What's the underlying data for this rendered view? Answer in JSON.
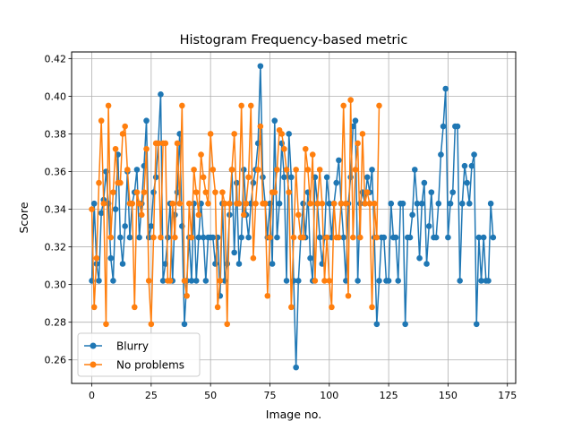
{
  "chart_data": {
    "type": "line",
    "title": "Histogram Frequency-based metric",
    "xlabel": "Image no.",
    "ylabel": "Score",
    "xlim": [
      -8.5,
      178.5
    ],
    "ylim": [
      0.2475,
      0.4235
    ],
    "xticks": [
      0,
      25,
      50,
      75,
      100,
      125,
      150,
      175
    ],
    "yticks": [
      0.26,
      0.28,
      0.3,
      0.32,
      0.34,
      0.36,
      0.38,
      0.4,
      0.42
    ],
    "ytick_labels": [
      "0.26",
      "0.28",
      "0.30",
      "0.32",
      "0.34",
      "0.36",
      "0.38",
      "0.40",
      "0.42"
    ],
    "grid": true,
    "legend": "lower-left",
    "series": [
      {
        "name": "Blurry",
        "color": "#1f77b4",
        "values": [
          0.302,
          0.343,
          0.311,
          0.302,
          0.338,
          0.345,
          0.36,
          0.343,
          0.314,
          0.302,
          0.34,
          0.369,
          0.325,
          0.311,
          0.331,
          0.36,
          0.325,
          0.343,
          0.349,
          0.361,
          0.325,
          0.343,
          0.363,
          0.387,
          0.325,
          0.331,
          0.349,
          0.357,
          0.375,
          0.401,
          0.302,
          0.311,
          0.325,
          0.343,
          0.302,
          0.337,
          0.349,
          0.38,
          0.331,
          0.279,
          0.302,
          0.325,
          0.302,
          0.343,
          0.302,
          0.325,
          0.343,
          0.325,
          0.302,
          0.325,
          0.325,
          0.325,
          0.311,
          0.325,
          0.294,
          0.343,
          0.302,
          0.311,
          0.337,
          0.361,
          0.317,
          0.354,
          0.311,
          0.325,
          0.361,
          0.337,
          0.325,
          0.343,
          0.354,
          0.361,
          0.375,
          0.416,
          0.357,
          0.343,
          0.325,
          0.343,
          0.311,
          0.387,
          0.325,
          0.343,
          0.375,
          0.357,
          0.302,
          0.38,
          0.357,
          0.302,
          0.256,
          0.302,
          0.325,
          0.343,
          0.325,
          0.349,
          0.314,
          0.302,
          0.357,
          0.343,
          0.325,
          0.311,
          0.325,
          0.357,
          0.343,
          0.325,
          0.343,
          0.354,
          0.366,
          0.343,
          0.325,
          0.302,
          0.343,
          0.357,
          0.384,
          0.387,
          0.302,
          0.343,
          0.349,
          0.343,
          0.357,
          0.349,
          0.361,
          0.325,
          0.279,
          0.302,
          0.325,
          0.325,
          0.302,
          0.302,
          0.343,
          0.325,
          0.325,
          0.302,
          0.343,
          0.343,
          0.279,
          0.325,
          0.325,
          0.337,
          0.361,
          0.343,
          0.314,
          0.343,
          0.354,
          0.311,
          0.331,
          0.349,
          0.325,
          0.325,
          0.343,
          0.369,
          0.384,
          0.404,
          0.325,
          0.343,
          0.349,
          0.384,
          0.384,
          0.302,
          0.343,
          0.363,
          0.354,
          0.343,
          0.363,
          0.369,
          0.279,
          0.325,
          0.302,
          0.325,
          0.302,
          0.302,
          0.343,
          0.325
        ]
      },
      {
        "name": "No problems",
        "color": "#ff7f0e",
        "values": [
          0.34,
          0.288,
          0.314,
          0.354,
          0.387,
          0.343,
          0.279,
          0.395,
          0.325,
          0.349,
          0.372,
          0.354,
          0.354,
          0.38,
          0.384,
          0.361,
          0.343,
          0.343,
          0.288,
          0.349,
          0.343,
          0.337,
          0.349,
          0.372,
          0.302,
          0.279,
          0.325,
          0.375,
          0.375,
          0.325,
          0.375,
          0.375,
          0.302,
          0.302,
          0.343,
          0.325,
          0.375,
          0.343,
          0.395,
          0.302,
          0.294,
          0.343,
          0.325,
          0.361,
          0.349,
          0.337,
          0.369,
          0.357,
          0.349,
          0.343,
          0.38,
          0.361,
          0.349,
          0.288,
          0.302,
          0.349,
          0.343,
          0.279,
          0.343,
          0.361,
          0.38,
          0.343,
          0.343,
          0.395,
          0.337,
          0.343,
          0.357,
          0.395,
          0.314,
          0.343,
          0.361,
          0.384,
          0.343,
          0.343,
          0.294,
          0.325,
          0.349,
          0.349,
          0.361,
          0.382,
          0.38,
          0.372,
          0.361,
          0.349,
          0.288,
          0.325,
          0.361,
          0.337,
          0.325,
          0.325,
          0.372,
          0.361,
          0.343,
          0.369,
          0.302,
          0.343,
          0.361,
          0.343,
          0.302,
          0.325,
          0.302,
          0.288,
          0.343,
          0.325,
          0.325,
          0.343,
          0.395,
          0.343,
          0.294,
          0.398,
          0.325,
          0.361,
          0.375,
          0.325,
          0.38,
          0.343,
          0.349,
          0.343,
          0.288,
          0.343,
          0.325,
          0.395
        ]
      }
    ]
  }
}
